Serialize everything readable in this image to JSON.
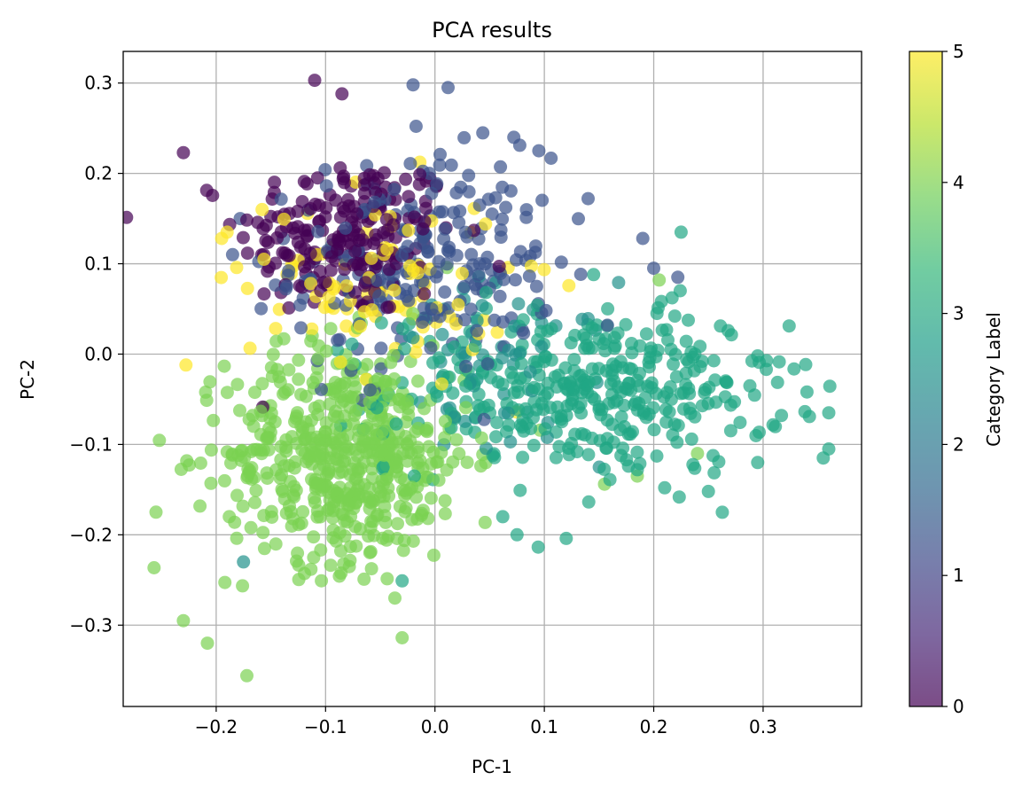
{
  "chart_data": {
    "type": "scatter",
    "title": "PCA results",
    "xlabel": "PC-1",
    "ylabel": "PC-2",
    "xlim": [
      -0.285,
      0.39
    ],
    "ylim": [
      -0.39,
      0.335
    ],
    "xticks": [
      -0.2,
      -0.1,
      0.0,
      0.1,
      0.2,
      0.3
    ],
    "xtick_labels": [
      "−0.2",
      "−0.1",
      "0.0",
      "0.1",
      "0.2",
      "0.3"
    ],
    "yticks": [
      -0.3,
      -0.2,
      -0.1,
      0.0,
      0.1,
      0.2,
      0.3
    ],
    "ytick_labels": [
      "−0.3",
      "−0.2",
      "−0.1",
      "0.0",
      "0.1",
      "0.2",
      "0.3"
    ],
    "grid": true,
    "colormap": "viridis",
    "colorbar": {
      "label": "Category Label",
      "range": [
        0,
        5
      ],
      "ticks": [
        0,
        1,
        2,
        3,
        4,
        5
      ],
      "tick_labels": [
        "0",
        "1",
        "2",
        "3",
        "4",
        "5"
      ],
      "stops": [
        "#440154",
        "#482878",
        "#3e4989",
        "#31688e",
        "#26828e",
        "#1f9e89",
        "#35b779",
        "#6ece58",
        "#b5de2b",
        "#fde725"
      ]
    },
    "point_alpha": 0.7,
    "category_colors": [
      "#440154",
      "#3b528b",
      "#21918c",
      "#21a685",
      "#7ad151",
      "#fde725"
    ],
    "clusters": [
      {
        "category": 0,
        "center": [
          -0.08,
          0.13
        ],
        "spread": [
          0.05,
          0.045
        ],
        "n": 210
      },
      {
        "category": 1,
        "center": [
          -0.01,
          0.1
        ],
        "spread": [
          0.06,
          0.06
        ],
        "n": 230
      },
      {
        "category": 2,
        "center": [
          0.06,
          -0.02
        ],
        "spread": [
          0.05,
          0.05
        ],
        "n": 60
      },
      {
        "category": 3,
        "center": [
          0.14,
          -0.04
        ],
        "spread": [
          0.09,
          0.045
        ],
        "n": 380
      },
      {
        "category": 4,
        "center": [
          -0.08,
          -0.11
        ],
        "spread": [
          0.055,
          0.06
        ],
        "n": 560
      },
      {
        "category": 5,
        "center": [
          -0.05,
          0.08
        ],
        "spread": [
          0.06,
          0.05
        ],
        "n": 95
      }
    ],
    "points": [
      {
        "x": -0.23,
        "y": 0.223,
        "c": 0
      },
      {
        "x": -0.11,
        "y": 0.303,
        "c": 0
      },
      {
        "x": -0.085,
        "y": 0.288,
        "c": 0
      },
      {
        "x": -0.02,
        "y": 0.298,
        "c": 1
      },
      {
        "x": 0.012,
        "y": 0.295,
        "c": 1
      },
      {
        "x": 0.095,
        "y": 0.225,
        "c": 1
      },
      {
        "x": 0.14,
        "y": 0.172,
        "c": 1
      },
      {
        "x": 0.19,
        "y": 0.128,
        "c": 1
      },
      {
        "x": 0.225,
        "y": 0.135,
        "c": 3
      },
      {
        "x": 0.2,
        "y": 0.095,
        "c": 1
      },
      {
        "x": 0.222,
        "y": 0.085,
        "c": 1
      },
      {
        "x": 0.205,
        "y": 0.082,
        "c": 4
      },
      {
        "x": 0.203,
        "y": 0.045,
        "c": 3
      },
      {
        "x": 0.145,
        "y": 0.088,
        "c": 3
      },
      {
        "x": -0.255,
        "y": -0.175,
        "c": 4
      },
      {
        "x": -0.23,
        "y": -0.295,
        "c": 4
      },
      {
        "x": -0.208,
        "y": -0.32,
        "c": 4
      },
      {
        "x": -0.172,
        "y": -0.356,
        "c": 4
      },
      {
        "x": -0.03,
        "y": -0.314,
        "c": 4
      },
      {
        "x": -0.03,
        "y": -0.251,
        "c": 3
      },
      {
        "x": 0.12,
        "y": -0.204,
        "c": 3
      },
      {
        "x": 0.295,
        "y": -0.002,
        "c": 3
      },
      {
        "x": 0.36,
        "y": -0.065,
        "c": 3
      },
      {
        "x": 0.36,
        "y": -0.105,
        "c": 3
      },
      {
        "x": 0.355,
        "y": -0.115,
        "c": 3
      },
      {
        "x": 0.295,
        "y": -0.12,
        "c": 3
      },
      {
        "x": 0.25,
        "y": -0.152,
        "c": 3
      },
      {
        "x": 0.155,
        "y": -0.144,
        "c": 4
      },
      {
        "x": 0.185,
        "y": -0.135,
        "c": 4
      },
      {
        "x": 0.185,
        "y": -0.128,
        "c": 3
      },
      {
        "x": 0.21,
        "y": -0.148,
        "c": 3
      },
      {
        "x": 0.24,
        "y": -0.11,
        "c": 4
      },
      {
        "x": -0.175,
        "y": -0.23,
        "c": 2
      },
      {
        "x": 0.075,
        "y": -0.2,
        "c": 3
      },
      {
        "x": 0.062,
        "y": -0.18,
        "c": 3
      },
      {
        "x": -0.19,
        "y": 0.135,
        "c": 5
      },
      {
        "x": -0.195,
        "y": 0.128,
        "c": 5
      },
      {
        "x": -0.158,
        "y": 0.16,
        "c": 5
      },
      {
        "x": -0.185,
        "y": 0.11,
        "c": 1
      },
      {
        "x": -0.178,
        "y": 0.15,
        "c": 1
      }
    ]
  }
}
